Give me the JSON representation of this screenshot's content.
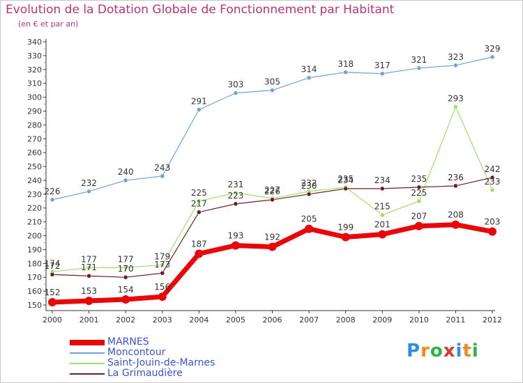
{
  "title": "Evolution de la Dotation Globale de Fonctionnement par Habitant",
  "subtitle": "(en € et par an)",
  "logo": {
    "text": "Proxiti",
    "letters": [
      "P",
      "r",
      "o",
      "x",
      "i",
      "t",
      "i"
    ],
    "colors": [
      "#2f8fe6",
      "#f08a1c",
      "#2fb34a",
      "#d93a2b",
      "#2f8fe6",
      "#f08a1c",
      "#2fb34a"
    ]
  },
  "chart_data": {
    "type": "line",
    "title": "Evolution de la Dotation Globale de Fonctionnement par Habitant",
    "subtitle": "(en € et par an)",
    "x": [
      "2000",
      "2001",
      "2002",
      "2003",
      "2004",
      "2005",
      "2006",
      "2007",
      "2008",
      "2009",
      "2010",
      "2011",
      "2012"
    ],
    "ylim": [
      150,
      340
    ],
    "yticks": [
      150,
      160,
      170,
      180,
      190,
      200,
      210,
      220,
      230,
      240,
      250,
      260,
      270,
      280,
      290,
      300,
      310,
      320,
      330,
      340
    ],
    "grid": false,
    "legend_position": "bottom-left",
    "series": [
      {
        "name": "MARNES",
        "color": "#e8080a",
        "values": [
          152,
          153,
          154,
          156,
          187,
          193,
          192,
          205,
          199,
          201,
          207,
          208,
          203
        ]
      },
      {
        "name": "Moncontour",
        "color": "#6fa3d6",
        "values": [
          226,
          232,
          240,
          243,
          291,
          303,
          305,
          314,
          318,
          317,
          321,
          323,
          329
        ]
      },
      {
        "name": "Saint-Jouin-de-Marnes",
        "color": "#9ee06a",
        "values": [
          174,
          177,
          177,
          179,
          225,
          231,
          227,
          232,
          235,
          215,
          225,
          293,
          233
        ]
      },
      {
        "name": "La Grimaudière",
        "color": "#6b1f22",
        "values": [
          172,
          171,
          170,
          173,
          217,
          223,
          226,
          230,
          234,
          234,
          235,
          236,
          242
        ]
      }
    ]
  }
}
